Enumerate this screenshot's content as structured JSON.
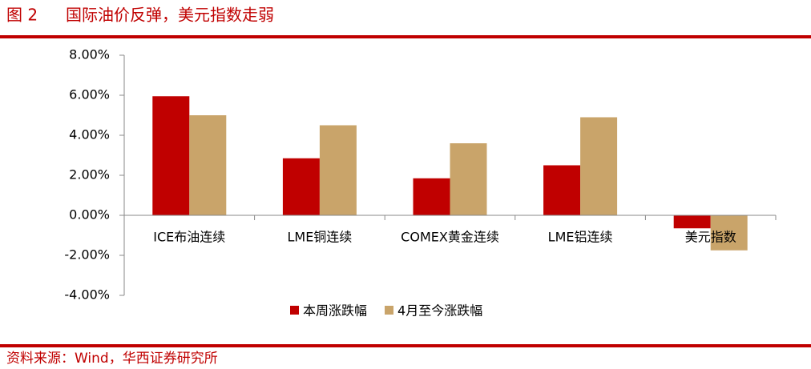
{
  "chart_data": {
    "type": "bar",
    "figure_label": "图 2",
    "title": "国际油价反弹，美元指数走弱",
    "source": "资料来源：Wind，华西证券研究所",
    "categories": [
      "ICE布油连续",
      "LME铜连续",
      "COMEX黄金连续",
      "LME铝连续",
      "美元指数"
    ],
    "series": [
      {
        "name": "本周涨跌幅",
        "color": "#c00000",
        "values": [
          5.95,
          2.85,
          1.85,
          2.5,
          -0.65
        ]
      },
      {
        "name": "4月至今涨跌幅",
        "color": "#c9a46a",
        "values": [
          5.0,
          4.5,
          3.6,
          4.9,
          -1.75
        ]
      }
    ],
    "ylim": [
      -4,
      8
    ],
    "yticks": [
      {
        "value": -4,
        "label": "-4.00%"
      },
      {
        "value": -2,
        "label": "-2.00%"
      },
      {
        "value": 0,
        "label": "0.00%"
      },
      {
        "value": 2,
        "label": "2.00%"
      },
      {
        "value": 4,
        "label": "4.00%"
      },
      {
        "value": 6,
        "label": "6.00%"
      },
      {
        "value": 8,
        "label": "8.00%"
      }
    ],
    "grid": false,
    "legend": "bottom"
  }
}
